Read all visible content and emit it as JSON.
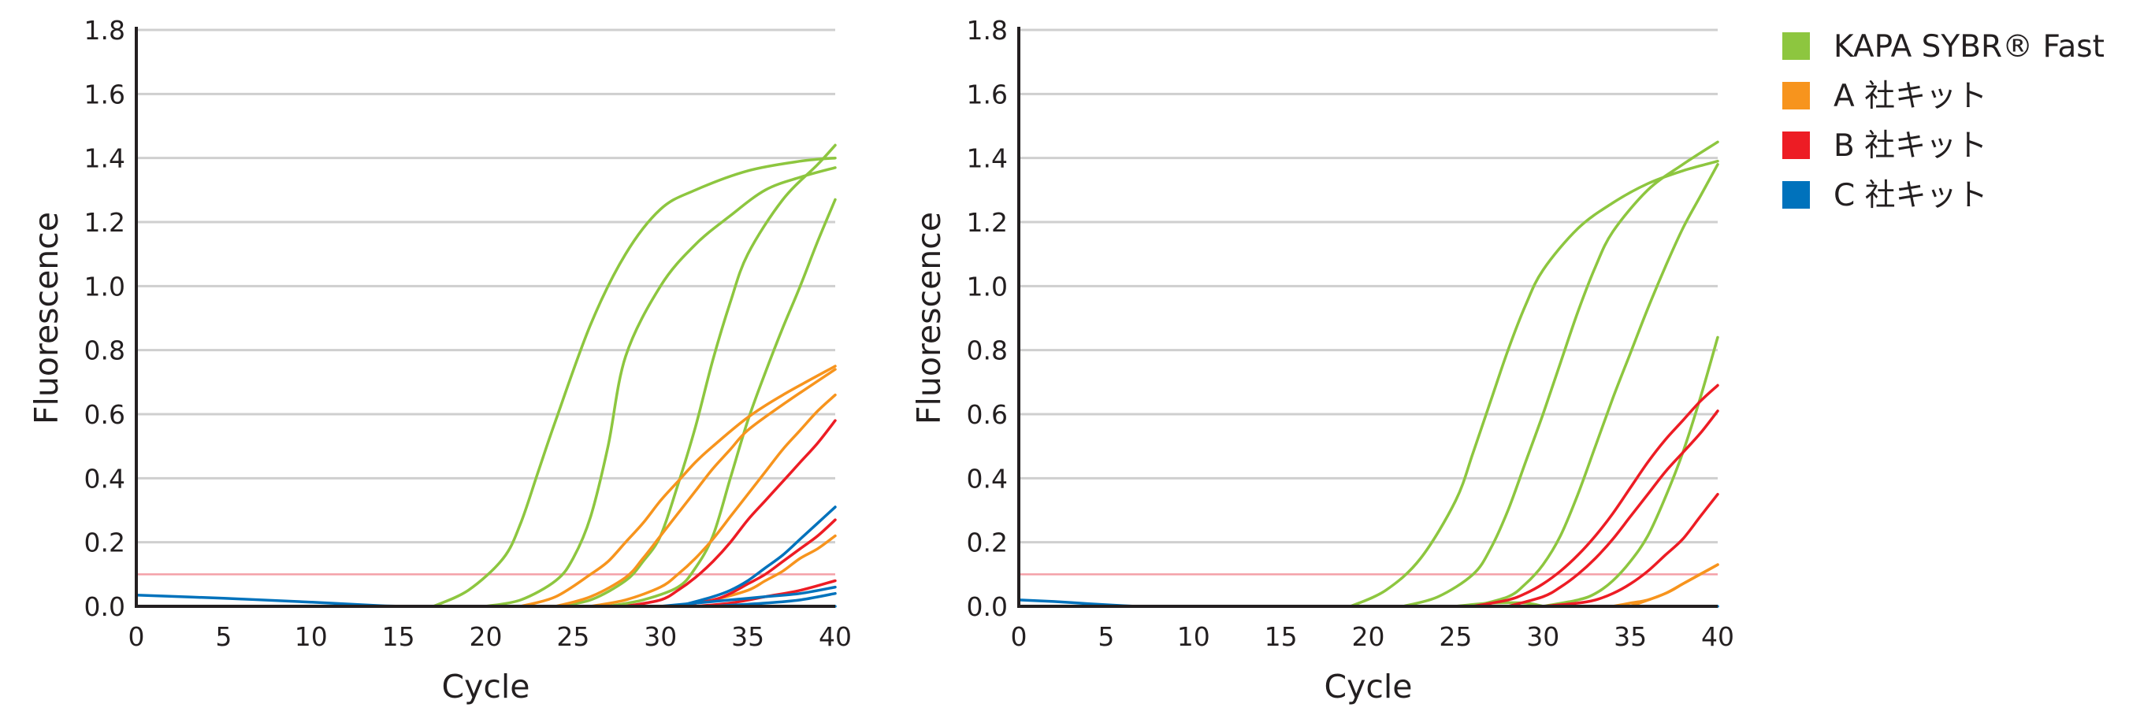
{
  "colors": {
    "KAPA": "#8dc63f",
    "A": "#f7941d",
    "B": "#ed1c24",
    "C": "#0072bc",
    "threshold": "#f4a0a8",
    "grid": "#cfcfcf",
    "axis": "#231f20"
  },
  "legend": [
    {
      "key": "KAPA",
      "label": "KAPA SYBR® Fast"
    },
    {
      "key": "A",
      "label": "A 社キット"
    },
    {
      "key": "B",
      "label": "B 社キット"
    },
    {
      "key": "C",
      "label": "C 社キット"
    }
  ],
  "chart_data": [
    {
      "type": "line",
      "xlabel": "Cycle",
      "ylabel": "Fluorescence",
      "xlim": [
        0,
        40
      ],
      "ylim": [
        0,
        1.8
      ],
      "xticks": [
        "0",
        "5",
        "10",
        "15",
        "20",
        "25",
        "30",
        "35",
        "40"
      ],
      "yticks": [
        "0.0",
        "0.2",
        "0.4",
        "0.6",
        "0.8",
        "1.0",
        "1.2",
        "1.4",
        "1.6",
        "1.8"
      ],
      "grid": true,
      "threshold": 0.1,
      "series": [
        {
          "group": "KAPA",
          "x": [
            17,
            19,
            21,
            22,
            23,
            24,
            26,
            28,
            30,
            32,
            35,
            38,
            40
          ],
          "y": [
            0,
            0.05,
            0.15,
            0.26,
            0.42,
            0.58,
            0.88,
            1.1,
            1.24,
            1.3,
            1.36,
            1.39,
            1.4
          ]
        },
        {
          "group": "KAPA",
          "x": [
            20,
            22,
            24,
            25,
            26,
            27,
            28,
            30,
            32,
            34,
            36,
            38,
            40
          ],
          "y": [
            0,
            0.02,
            0.08,
            0.15,
            0.28,
            0.5,
            0.78,
            1.0,
            1.13,
            1.22,
            1.3,
            1.34,
            1.37
          ]
        },
        {
          "group": "KAPA",
          "x": [
            24,
            26,
            28,
            29,
            30,
            31,
            32,
            33,
            34,
            35,
            37,
            39,
            40
          ],
          "y": [
            0,
            0.02,
            0.08,
            0.14,
            0.22,
            0.38,
            0.56,
            0.77,
            0.95,
            1.1,
            1.27,
            1.38,
            1.44
          ]
        },
        {
          "group": "KAPA",
          "x": [
            27,
            29,
            31,
            32,
            33,
            34,
            35,
            36,
            37,
            38,
            39,
            40
          ],
          "y": [
            0,
            0.02,
            0.06,
            0.12,
            0.22,
            0.4,
            0.58,
            0.73,
            0.87,
            1.0,
            1.14,
            1.27
          ]
        },
        {
          "group": "A",
          "x": [
            22,
            24,
            26,
            27,
            28,
            29,
            30,
            31,
            32,
            33,
            35,
            37,
            40
          ],
          "y": [
            0,
            0.03,
            0.1,
            0.14,
            0.2,
            0.26,
            0.33,
            0.39,
            0.45,
            0.5,
            0.59,
            0.66,
            0.75
          ]
        },
        {
          "group": "A",
          "x": [
            24,
            26,
            28,
            29,
            30,
            31,
            32,
            33,
            34,
            35,
            37,
            40
          ],
          "y": [
            0,
            0.03,
            0.09,
            0.15,
            0.22,
            0.29,
            0.36,
            0.43,
            0.49,
            0.55,
            0.63,
            0.74
          ]
        },
        {
          "group": "A",
          "x": [
            26,
            28,
            30,
            31,
            32,
            33,
            34,
            35,
            36,
            37,
            38,
            39,
            40
          ],
          "y": [
            0,
            0.02,
            0.06,
            0.1,
            0.15,
            0.21,
            0.28,
            0.35,
            0.42,
            0.49,
            0.55,
            0.61,
            0.66
          ]
        },
        {
          "group": "A",
          "x": [
            31,
            33,
            35,
            36,
            37,
            38,
            39,
            40
          ],
          "y": [
            0,
            0.02,
            0.05,
            0.08,
            0.11,
            0.15,
            0.18,
            0.22
          ]
        },
        {
          "group": "B",
          "x": [
            28,
            30,
            31,
            32,
            33,
            34,
            35,
            36,
            37,
            38,
            39,
            40
          ],
          "y": [
            0,
            0.02,
            0.05,
            0.09,
            0.14,
            0.2,
            0.27,
            0.33,
            0.39,
            0.45,
            0.51,
            0.58
          ]
        },
        {
          "group": "B",
          "x": [
            31,
            33,
            34,
            35,
            36,
            37,
            38,
            39,
            40
          ],
          "y": [
            0,
            0.02,
            0.04,
            0.07,
            0.1,
            0.14,
            0.18,
            0.22,
            0.27
          ]
        },
        {
          "group": "B",
          "x": [
            32,
            34,
            36,
            38,
            40
          ],
          "y": [
            0,
            0.01,
            0.03,
            0.05,
            0.08
          ]
        },
        {
          "group": "C",
          "x": [
            31,
            33,
            34,
            35,
            36,
            37,
            38,
            39,
            40
          ],
          "y": [
            0,
            0.03,
            0.05,
            0.08,
            0.12,
            0.16,
            0.21,
            0.26,
            0.31
          ]
        },
        {
          "group": "C",
          "x": [
            30,
            32,
            34,
            36,
            38,
            40
          ],
          "y": [
            0,
            0.01,
            0.02,
            0.03,
            0.04,
            0.06
          ]
        },
        {
          "group": "C",
          "x": [
            33,
            36,
            38,
            40
          ],
          "y": [
            0,
            0.01,
            0.02,
            0.04
          ]
        },
        {
          "group": "C",
          "x": [
            0,
            5,
            10,
            14,
            16
          ],
          "y": [
            0.035,
            0.025,
            0.013,
            0.002,
            0
          ]
        },
        {
          "group": "C",
          "x": [
            16,
            25,
            33,
            40
          ],
          "y": [
            0,
            0,
            0,
            0
          ]
        }
      ]
    },
    {
      "type": "line",
      "xlabel": "Cycle",
      "ylabel": "Fluorescence",
      "xlim": [
        0,
        40
      ],
      "ylim": [
        0,
        1.8
      ],
      "xticks": [
        "0",
        "5",
        "10",
        "15",
        "20",
        "25",
        "30",
        "35",
        "40"
      ],
      "yticks": [
        "0.0",
        "0.2",
        "0.4",
        "0.6",
        "0.8",
        "1.0",
        "1.2",
        "1.4",
        "1.6",
        "1.8"
      ],
      "grid": true,
      "threshold": 0.1,
      "series": [
        {
          "group": "KAPA",
          "x": [
            19,
            21,
            23,
            25,
            26,
            27,
            28,
            29,
            30,
            32,
            34,
            36,
            38,
            40
          ],
          "y": [
            0,
            0.05,
            0.15,
            0.33,
            0.48,
            0.64,
            0.8,
            0.94,
            1.05,
            1.18,
            1.26,
            1.32,
            1.36,
            1.39
          ]
        },
        {
          "group": "KAPA",
          "x": [
            22,
            24,
            26,
            27,
            28,
            29,
            30,
            31,
            32,
            33,
            34,
            36,
            38,
            40
          ],
          "y": [
            0,
            0.03,
            0.1,
            0.18,
            0.3,
            0.45,
            0.6,
            0.76,
            0.92,
            1.06,
            1.17,
            1.3,
            1.38,
            1.45
          ]
        },
        {
          "group": "KAPA",
          "x": [
            26,
            28,
            29,
            30,
            31,
            32,
            33,
            34,
            35,
            36,
            37,
            38,
            39,
            40
          ],
          "y": [
            0,
            0.03,
            0.07,
            0.13,
            0.22,
            0.35,
            0.5,
            0.65,
            0.79,
            0.93,
            1.06,
            1.18,
            1.28,
            1.38
          ]
        },
        {
          "group": "KAPA",
          "x": [
            30,
            32,
            33,
            34,
            35,
            36,
            37,
            38,
            39,
            40
          ],
          "y": [
            0,
            0.02,
            0.04,
            0.08,
            0.14,
            0.22,
            0.34,
            0.48,
            0.65,
            0.84
          ]
        },
        {
          "group": "KAPA",
          "x": [
            25,
            27,
            29,
            30
          ],
          "y": [
            0,
            0.01,
            0.01,
            0
          ]
        },
        {
          "group": "B",
          "x": [
            26,
            28,
            29,
            30,
            31,
            32,
            33,
            34,
            35,
            36,
            37,
            38,
            39,
            40
          ],
          "y": [
            0,
            0.02,
            0.04,
            0.07,
            0.11,
            0.16,
            0.22,
            0.29,
            0.37,
            0.45,
            0.52,
            0.58,
            0.64,
            0.69
          ]
        },
        {
          "group": "B",
          "x": [
            28,
            30,
            31,
            32,
            33,
            34,
            35,
            36,
            37,
            38,
            39,
            40
          ],
          "y": [
            0,
            0.03,
            0.06,
            0.1,
            0.15,
            0.21,
            0.28,
            0.35,
            0.42,
            0.48,
            0.54,
            0.61
          ]
        },
        {
          "group": "B",
          "x": [
            30,
            32,
            33,
            34,
            35,
            36,
            37,
            38,
            39,
            40
          ],
          "y": [
            0,
            0.01,
            0.02,
            0.04,
            0.07,
            0.11,
            0.16,
            0.21,
            0.28,
            0.35
          ]
        },
        {
          "group": "A",
          "x": [
            34,
            35,
            36,
            37,
            38,
            39,
            40
          ],
          "y": [
            0,
            0.01,
            0.02,
            0.04,
            0.07,
            0.1,
            0.13
          ]
        },
        {
          "group": "A",
          "x": [
            35,
            37,
            38,
            39,
            40
          ],
          "y": [
            0,
            0.04,
            0.07,
            0.1,
            0.13
          ]
        },
        {
          "group": "C",
          "x": [
            0,
            2,
            4,
            6,
            7
          ],
          "y": [
            0.02,
            0.015,
            0.008,
            0.002,
            0
          ]
        },
        {
          "group": "C",
          "x": [
            7,
            15,
            25,
            40
          ],
          "y": [
            0,
            0,
            0,
            0
          ]
        }
      ]
    }
  ]
}
